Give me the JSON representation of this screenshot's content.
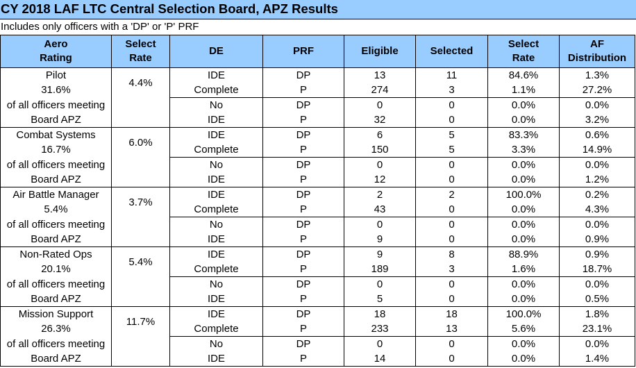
{
  "title": "CY 2018 LAF LTC Central Selection Board, APZ Results",
  "subtitle": "Includes only officers with a 'DP' or 'P' PRF",
  "headers": {
    "aero_rating": [
      "Aero",
      "Rating"
    ],
    "select_rate": [
      "Select",
      "Rate"
    ],
    "de": "DE",
    "prf": "PRF",
    "eligible": "Eligible",
    "selected": "Selected",
    "select_rate2": [
      "Select",
      "Rate"
    ],
    "af_distribution": [
      "AF",
      "Distribution"
    ]
  },
  "groups": [
    {
      "label": [
        "Pilot",
        "31.6%",
        "of all officers meeting",
        "Board APZ"
      ],
      "select_rate": "4.4%",
      "rows": [
        {
          "de": "IDE",
          "prf": "DP",
          "eligible": "13",
          "selected": "11",
          "rate": "84.6%",
          "af": "1.3%"
        },
        {
          "de": "Complete",
          "prf": "P",
          "eligible": "274",
          "selected": "3",
          "rate": "1.1%",
          "af": "27.2%"
        },
        {
          "de": "No",
          "prf": "DP",
          "eligible": "0",
          "selected": "0",
          "rate": "0.0%",
          "af": "0.0%"
        },
        {
          "de": "IDE",
          "prf": "P",
          "eligible": "32",
          "selected": "0",
          "rate": "0.0%",
          "af": "3.2%"
        }
      ]
    },
    {
      "label": [
        "Combat Systems",
        "16.7%",
        "of all officers meeting",
        "Board APZ"
      ],
      "select_rate": "6.0%",
      "rows": [
        {
          "de": "IDE",
          "prf": "DP",
          "eligible": "6",
          "selected": "5",
          "rate": "83.3%",
          "af": "0.6%"
        },
        {
          "de": "Complete",
          "prf": "P",
          "eligible": "150",
          "selected": "5",
          "rate": "3.3%",
          "af": "14.9%"
        },
        {
          "de": "No",
          "prf": "DP",
          "eligible": "0",
          "selected": "0",
          "rate": "0.0%",
          "af": "0.0%"
        },
        {
          "de": "IDE",
          "prf": "P",
          "eligible": "12",
          "selected": "0",
          "rate": "0.0%",
          "af": "1.2%"
        }
      ]
    },
    {
      "label": [
        "Air Battle Manager",
        "5.4%",
        "of all officers meeting",
        "Board APZ"
      ],
      "select_rate": "3.7%",
      "rows": [
        {
          "de": "IDE",
          "prf": "DP",
          "eligible": "2",
          "selected": "2",
          "rate": "100.0%",
          "af": "0.2%"
        },
        {
          "de": "Complete",
          "prf": "P",
          "eligible": "43",
          "selected": "0",
          "rate": "0.0%",
          "af": "4.3%"
        },
        {
          "de": "No",
          "prf": "DP",
          "eligible": "0",
          "selected": "0",
          "rate": "0.0%",
          "af": "0.0%"
        },
        {
          "de": "IDE",
          "prf": "P",
          "eligible": "9",
          "selected": "0",
          "rate": "0.0%",
          "af": "0.9%"
        }
      ]
    },
    {
      "label": [
        "Non-Rated Ops",
        "20.1%",
        "of all officers meeting",
        "Board APZ"
      ],
      "select_rate": "5.4%",
      "rows": [
        {
          "de": "IDE",
          "prf": "DP",
          "eligible": "9",
          "selected": "8",
          "rate": "88.9%",
          "af": "0.9%"
        },
        {
          "de": "Complete",
          "prf": "P",
          "eligible": "189",
          "selected": "3",
          "rate": "1.6%",
          "af": "18.7%"
        },
        {
          "de": "No",
          "prf": "DP",
          "eligible": "0",
          "selected": "0",
          "rate": "0.0%",
          "af": "0.0%"
        },
        {
          "de": "IDE",
          "prf": "P",
          "eligible": "5",
          "selected": "0",
          "rate": "0.0%",
          "af": "0.5%"
        }
      ]
    },
    {
      "label": [
        "Mission Support",
        "26.3%",
        "of all officers meeting",
        "Board APZ"
      ],
      "select_rate": "11.7%",
      "rows": [
        {
          "de": "IDE",
          "prf": "DP",
          "eligible": "18",
          "selected": "18",
          "rate": "100.0%",
          "af": "1.8%"
        },
        {
          "de": "Complete",
          "prf": "P",
          "eligible": "233",
          "selected": "13",
          "rate": "5.6%",
          "af": "23.1%"
        },
        {
          "de": "No",
          "prf": "DP",
          "eligible": "0",
          "selected": "0",
          "rate": "0.0%",
          "af": "0.0%"
        },
        {
          "de": "IDE",
          "prf": "P",
          "eligible": "14",
          "selected": "0",
          "rate": "0.0%",
          "af": "1.4%"
        }
      ]
    }
  ],
  "colors": {
    "header_bg": "#99ccff",
    "border": "#000000"
  }
}
